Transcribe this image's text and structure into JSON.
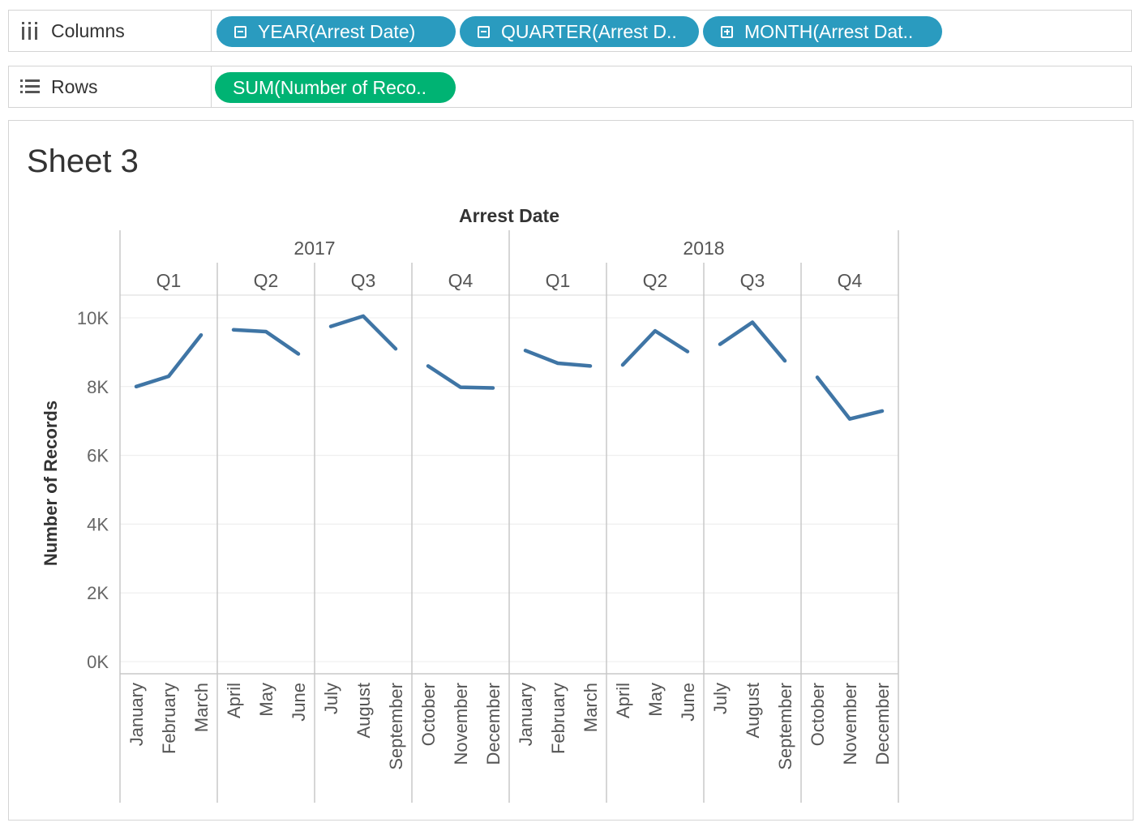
{
  "shelves": {
    "columns": {
      "label": "Columns",
      "icon": "columns-icon",
      "pills": [
        {
          "text": "YEAR(Arrest Date)",
          "toggle": "minus"
        },
        {
          "text": "QUARTER(Arrest D..",
          "toggle": "minus"
        },
        {
          "text": "MONTH(Arrest Dat..",
          "toggle": "plus"
        }
      ]
    },
    "rows": {
      "label": "Rows",
      "icon": "rows-list-icon",
      "pills": [
        {
          "text": "SUM(Number of Reco.."
        }
      ]
    }
  },
  "colors": {
    "dimension_pill": "#2a9bbf",
    "measure_pill": "#00b373",
    "line": "#3f75a5",
    "grid": "#ececec",
    "divider": "#c8c8c8"
  },
  "sheet": {
    "title": "Sheet 3"
  },
  "chart_data": {
    "type": "line",
    "title": "Sheet 3",
    "xlabel": "Arrest Date",
    "ylabel": "Number of Records",
    "ylim": [
      0,
      10000
    ],
    "yticks": [
      "0K",
      "2K",
      "4K",
      "6K",
      "8K",
      "10K"
    ],
    "years": [
      "2017",
      "2018"
    ],
    "quarters": [
      "Q1",
      "Q2",
      "Q3",
      "Q4"
    ],
    "months": [
      "January",
      "February",
      "March",
      "April",
      "May",
      "June",
      "July",
      "August",
      "September",
      "October",
      "November",
      "December"
    ],
    "series": [
      {
        "year": "2017",
        "values": [
          8000,
          8300,
          9500,
          9650,
          9600,
          8950,
          9750,
          10050,
          9100,
          8600,
          7980,
          7960
        ]
      },
      {
        "year": "2018",
        "values": [
          9050,
          8680,
          8600,
          8630,
          9620,
          9020,
          9230,
          9870,
          8750,
          8270,
          7060,
          7290
        ]
      }
    ],
    "grid": true,
    "legend": "none"
  }
}
